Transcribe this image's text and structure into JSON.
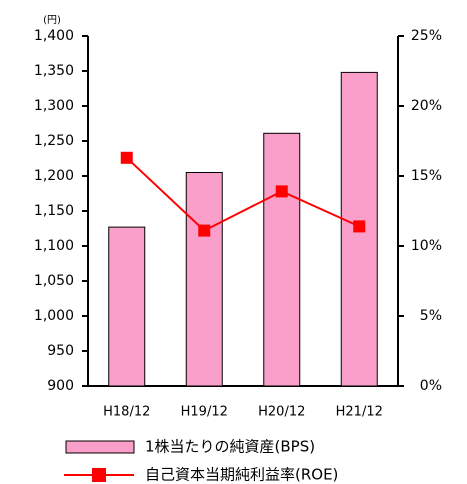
{
  "chart_data": {
    "type": "bar_line",
    "y_unit": "(円)",
    "categories": [
      "H18/12",
      "H19/12",
      "H20/12",
      "H21/12"
    ],
    "series": [
      {
        "name": "1株当たりの純資産(BPS)",
        "color": "#f99fc9",
        "type": "bar",
        "values": [
          1127,
          1205,
          1261,
          1348
        ]
      },
      {
        "name": "自己資本当期純利益率(ROE)",
        "color": "#ff0000",
        "type": "line",
        "axis": "y2",
        "values": [
          16.3,
          11.1,
          13.9,
          11.4
        ]
      }
    ],
    "ylim": [
      900,
      1400
    ],
    "yticks": [
      {
        "value": 1400,
        "label": "1,400"
      },
      {
        "value": 1350,
        "label": "1,350"
      },
      {
        "value": 1300,
        "label": "1,300"
      },
      {
        "value": 1250,
        "label": "1,250"
      },
      {
        "value": 1200,
        "label": "1,200"
      },
      {
        "value": 1150,
        "label": "1,150"
      },
      {
        "value": 1100,
        "label": "1,100"
      },
      {
        "value": 1050,
        "label": "1,050"
      },
      {
        "value": 1000,
        "label": "1,000"
      },
      950,
      900
    ],
    "y2lim": [
      0,
      25
    ],
    "y2ticks": [
      {
        "value": 25,
        "label": "25%"
      },
      {
        "value": 20,
        "label": "20%"
      },
      {
        "value": 15,
        "label": "15%"
      },
      {
        "value": 10,
        "label": "10%"
      },
      {
        "value": 5,
        "label": "5%"
      },
      {
        "value": 0,
        "label": "0%"
      }
    ]
  }
}
